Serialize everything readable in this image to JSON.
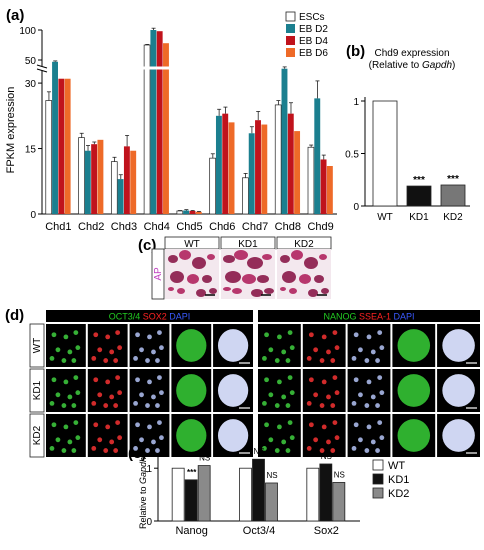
{
  "panels": {
    "a": "(a)",
    "b": "(b)",
    "c": "(c)",
    "d": "(d)",
    "e": "(e)"
  },
  "chart_data": [
    {
      "type": "bar",
      "panel": "a",
      "ylabel": "FPKM expression",
      "axis_break": true,
      "ylim": [
        0,
        100
      ],
      "yticks": [
        0,
        15,
        30,
        50,
        100
      ],
      "categories": [
        "Chd1",
        "Chd2",
        "Chd3",
        "Chd4",
        "Chd5",
        "Chd6",
        "Chd7",
        "Chd8",
        "Chd9"
      ],
      "series": [
        {
          "name": "ESCs",
          "color": "#ffffff",
          "values": [
            26,
            17.5,
            12,
            75,
            0.7,
            12.8,
            8.3,
            25,
            15.3
          ]
        },
        {
          "name": "EB D2",
          "color": "#1b7f8f",
          "values": [
            47,
            14.5,
            8,
            100,
            0.8,
            22.5,
            18.5,
            35.5,
            26.5
          ]
        },
        {
          "name": "EB D4",
          "color": "#c0131c",
          "values": [
            31,
            16,
            15.5,
            98,
            0.7,
            23,
            21.5,
            23,
            12.5
          ]
        },
        {
          "name": "EB D6",
          "color": "#ee6a28",
          "values": [
            31,
            17,
            14.5,
            78,
            0.5,
            21,
            20.5,
            19,
            11
          ]
        }
      ],
      "legend_position": "top-right"
    },
    {
      "type": "bar",
      "panel": "b",
      "title": "Chd9 expression",
      "subtitle": "(Relative to Gapdh)",
      "categories": [
        "WT",
        "KD1",
        "KD2"
      ],
      "values": [
        1.0,
        0.19,
        0.2
      ],
      "colors": [
        "#ffffff",
        "#111111",
        "#777777"
      ],
      "significance": [
        "",
        "***",
        "***"
      ],
      "ylim": [
        0,
        1
      ],
      "yticks": [
        0,
        0.5,
        1
      ]
    },
    {
      "type": "bar",
      "panel": "e",
      "ylabel": "Relative to Gapdh",
      "categories": [
        "Nanog",
        "Oct3/4",
        "Sox2"
      ],
      "series": [
        {
          "name": "WT",
          "color": "#ffffff",
          "values": [
            1.0,
            1.0,
            1.0
          ]
        },
        {
          "name": "KD1",
          "color": "#111111",
          "values": [
            0.78,
            1.17,
            1.08
          ]
        },
        {
          "name": "KD2",
          "color": "#8a8a8a",
          "values": [
            1.05,
            0.72,
            0.73
          ]
        }
      ],
      "significance": {
        "KD1": [
          "***",
          "NS",
          "NS"
        ],
        "KD2": [
          "NS",
          "NS",
          "NS"
        ]
      },
      "ylim": [
        0,
        1.25
      ],
      "yticks": [
        0,
        1
      ],
      "legend_position": "right"
    }
  ],
  "panel_c": {
    "headers": [
      "WT",
      "KD1",
      "KD2"
    ],
    "row_label": "AP"
  },
  "panel_d": {
    "left_header": [
      {
        "text": "OCT3/4",
        "color": "#22cc22"
      },
      {
        "text": "SOX2",
        "color": "#ff2222"
      },
      {
        "text": "DAPI",
        "color": "#3a5aff"
      }
    ],
    "right_header": [
      {
        "text": "NANOG",
        "color": "#22cc22"
      },
      {
        "text": "SSEA-1",
        "color": "#ff2222"
      },
      {
        "text": "DAPI",
        "color": "#3a5aff"
      }
    ],
    "rows": [
      "WT",
      "KD1",
      "KD2"
    ]
  }
}
